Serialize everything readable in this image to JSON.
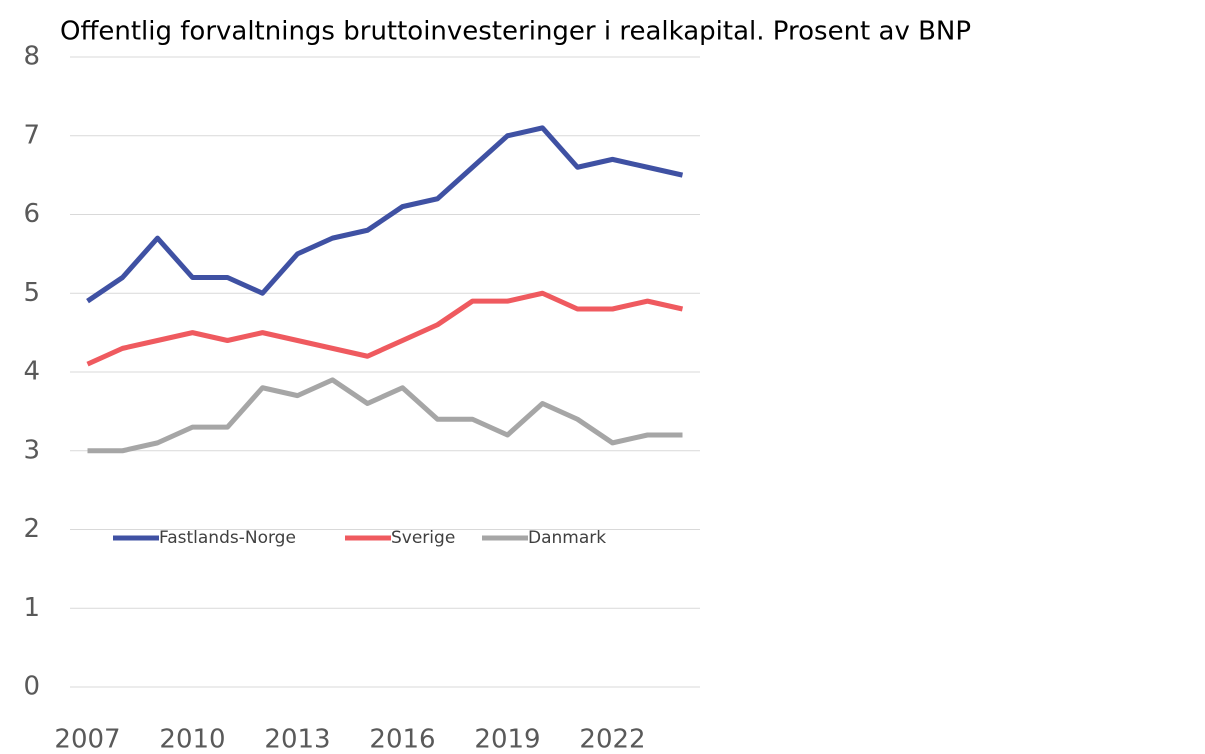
{
  "chart_data": {
    "type": "line",
    "title": "Offentlig forvaltnings bruttoinvesteringer i realkapital. Prosent av BNP",
    "categories": [
      "2007",
      null,
      null,
      "2010",
      null,
      null,
      "2013",
      null,
      null,
      "2016",
      null,
      null,
      "2019",
      null,
      null,
      "2022",
      null,
      null
    ],
    "series": [
      {
        "name": "Fastlands-Norge",
        "color": "#3f51a3",
        "values": [
          4.9,
          5.2,
          5.7,
          5.2,
          5.2,
          5.0,
          5.5,
          5.7,
          5.8,
          6.1,
          6.2,
          6.6,
          7.0,
          7.1,
          6.6,
          6.7,
          6.6,
          6.5
        ]
      },
      {
        "name": "Sverige",
        "color": "#ef5a5f",
        "values": [
          4.1,
          4.3,
          4.4,
          4.5,
          4.4,
          4.5,
          4.4,
          4.3,
          4.2,
          4.4,
          4.6,
          4.9,
          4.9,
          5.0,
          4.8,
          4.8,
          4.9,
          4.8
        ]
      },
      {
        "name": "Danmark",
        "color": "#a6a6a6",
        "values": [
          3.0,
          3.0,
          3.1,
          3.3,
          3.3,
          3.8,
          3.7,
          3.9,
          3.6,
          3.8,
          3.4,
          3.4,
          3.2,
          3.6,
          3.4,
          3.1,
          3.2,
          3.2
        ]
      }
    ],
    "ylim": [
      0,
      8
    ],
    "yticks": [
      0,
      1,
      2,
      3,
      4,
      5,
      6,
      7,
      8
    ],
    "grid": true
  }
}
